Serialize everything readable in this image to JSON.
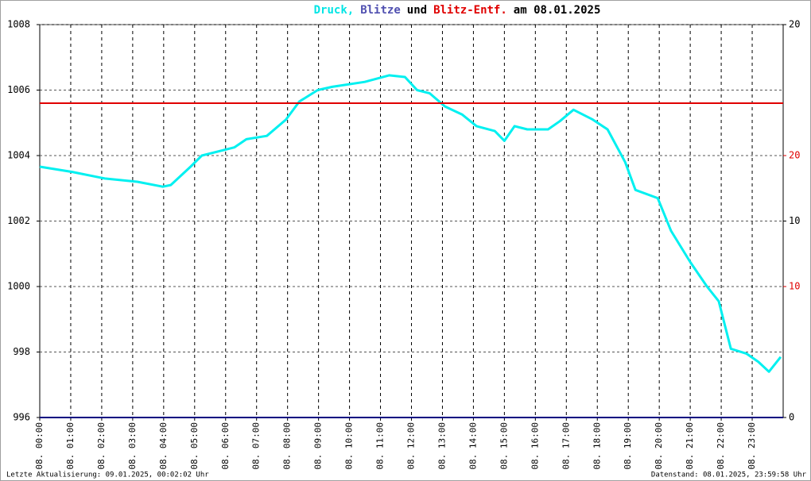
{
  "chart_data": {
    "type": "line",
    "title_parts": [
      {
        "text": "Druck,",
        "color": "#00e5e5"
      },
      {
        "text": "Blitze",
        "color": "#5050b0"
      },
      {
        "text": "und",
        "color": "#000000"
      },
      {
        "text": "Blitz-Entf.",
        "color": "#e00000"
      },
      {
        "text": "am 08.01.2025",
        "color": "#000000"
      }
    ],
    "footer_left": "Letzte Aktualisierung: 09.01.2025, 00:02:02 Uhr",
    "footer_right": "Datenstand: 08.01.2025, 23:59:58 Uhr",
    "xlim": [
      0,
      24
    ],
    "xticks": [
      {
        "value": 0,
        "label": "08. 00:00"
      },
      {
        "value": 1,
        "label": "08. 01:00"
      },
      {
        "value": 2,
        "label": "08. 02:00"
      },
      {
        "value": 3,
        "label": "08. 03:00"
      },
      {
        "value": 4,
        "label": "08. 04:00"
      },
      {
        "value": 5,
        "label": "08. 05:00"
      },
      {
        "value": 6,
        "label": "08. 06:00"
      },
      {
        "value": 7,
        "label": "08. 07:00"
      },
      {
        "value": 8,
        "label": "08. 08:00"
      },
      {
        "value": 9,
        "label": "08. 09:00"
      },
      {
        "value": 10,
        "label": "08. 10:00"
      },
      {
        "value": 11,
        "label": "08. 11:00"
      },
      {
        "value": 12,
        "label": "08. 12:00"
      },
      {
        "value": 13,
        "label": "08. 13:00"
      },
      {
        "value": 14,
        "label": "08. 14:00"
      },
      {
        "value": 15,
        "label": "08. 15:00"
      },
      {
        "value": 16,
        "label": "08. 16:00"
      },
      {
        "value": 17,
        "label": "08. 17:00"
      },
      {
        "value": 18,
        "label": "08. 18:00"
      },
      {
        "value": 19,
        "label": "08. 19:00"
      },
      {
        "value": 20,
        "label": "08. 20:00"
      },
      {
        "value": 21,
        "label": "08. 21:00"
      },
      {
        "value": 22,
        "label": "08. 22:00"
      },
      {
        "value": 23,
        "label": "08. 23:00"
      }
    ],
    "ylim": [
      996,
      1008
    ],
    "yticks": [
      996,
      998,
      1000,
      1002,
      1004,
      1006,
      1008
    ],
    "y2lim": [
      0,
      20
    ],
    "y2ticks": [
      0,
      10,
      20
    ],
    "y2color": "#000000",
    "y3lim": [
      0,
      30
    ],
    "y3ticks": [
      10,
      20
    ],
    "y3color": "#e00000",
    "grid": true,
    "series": [
      {
        "name": "Druck",
        "color": "#00f0f0",
        "x": [
          0,
          1.05,
          2.1,
          3.15,
          3.97,
          4.23,
          4.87,
          5.23,
          6.28,
          6.67,
          7.33,
          7.95,
          8.38,
          8.97,
          9.44,
          10.49,
          11.28,
          11.79,
          12.18,
          12.59,
          13.08,
          13.64,
          14.1,
          14.69,
          15.0,
          15.33,
          15.74,
          16.41,
          16.79,
          17.23,
          17.85,
          18.33,
          18.9,
          19.23,
          19.95,
          20.38,
          21.0,
          21.54,
          21.92,
          22.31,
          22.82,
          23.2,
          23.54,
          23.92
        ],
        "values": [
          1003.66,
          1003.5,
          1003.3,
          1003.2,
          1003.05,
          1003.1,
          1003.66,
          1004.0,
          1004.25,
          1004.5,
          1004.6,
          1005.1,
          1005.65,
          1006.0,
          1006.1,
          1006.25,
          1006.45,
          1006.4,
          1006.0,
          1005.9,
          1005.5,
          1005.25,
          1004.9,
          1004.75,
          1004.45,
          1004.9,
          1004.8,
          1004.8,
          1005.05,
          1005.4,
          1005.1,
          1004.8,
          1003.8,
          1002.95,
          1002.7,
          1001.7,
          1000.75,
          1000.0,
          999.55,
          998.1,
          997.95,
          997.7,
          997.4,
          997.85
        ]
      },
      {
        "name": "Blitze",
        "color": "#000080",
        "axis": "y2",
        "x": [
          0,
          24
        ],
        "values": [
          0,
          0
        ]
      },
      {
        "name": "Blitz-Entf.",
        "color": "#e00000",
        "axis": "y3",
        "x": [
          0,
          24
        ],
        "values": [
          24,
          24
        ]
      }
    ]
  }
}
